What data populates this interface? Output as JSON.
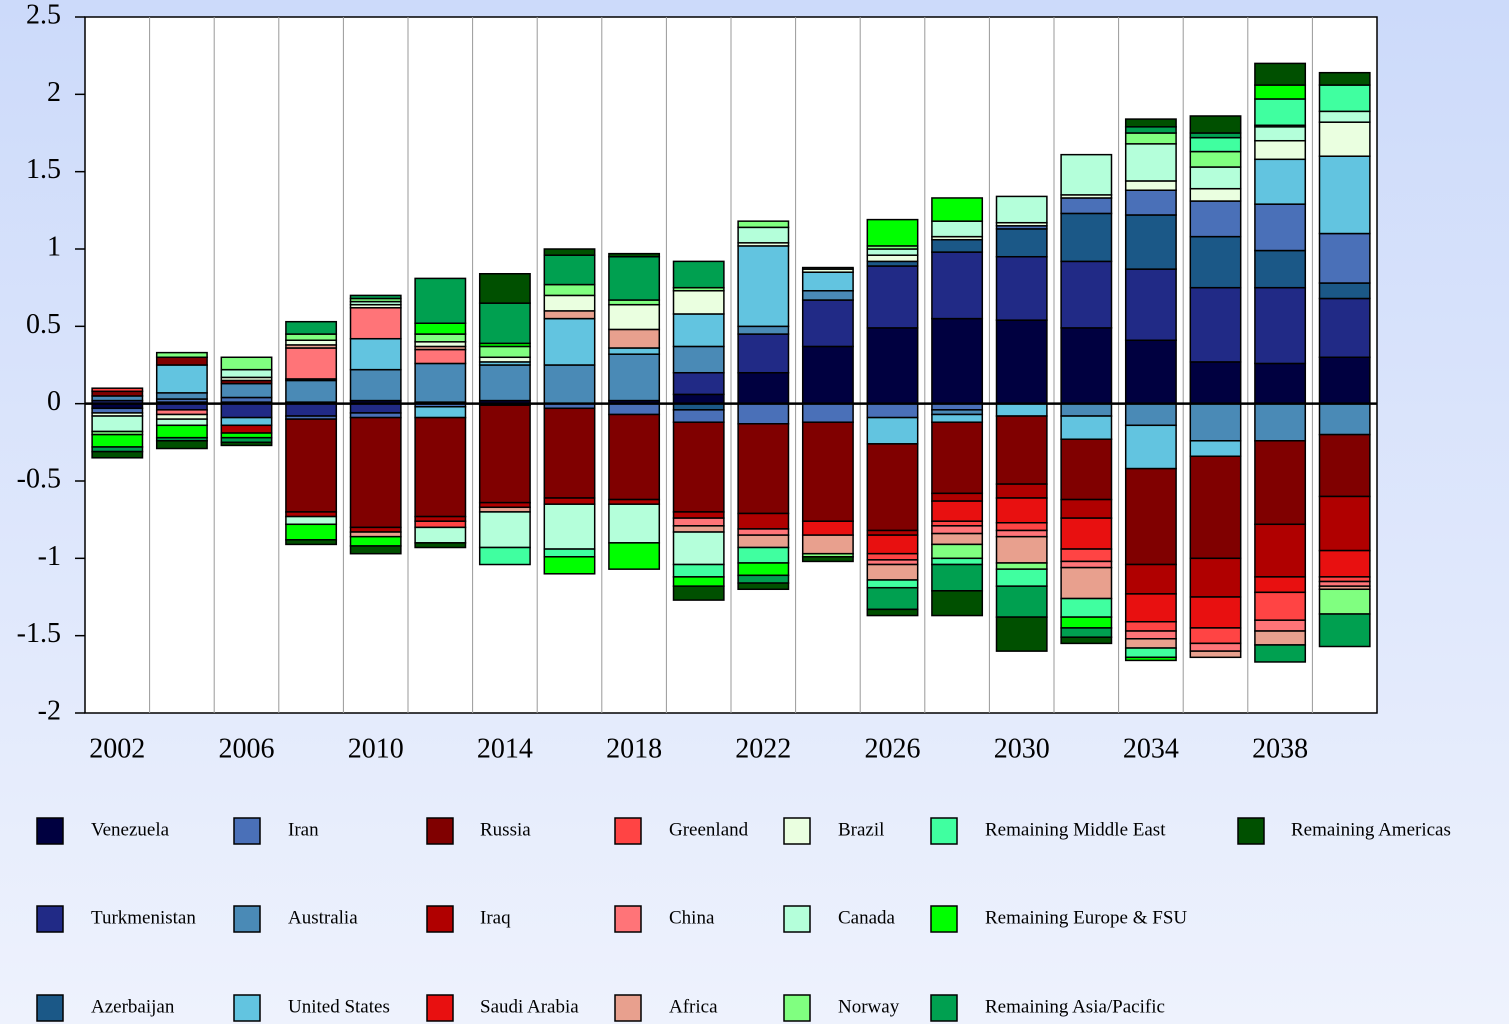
{
  "chart_data": {
    "type": "stacked_bar",
    "categories": [
      "2002",
      null,
      "2006",
      null,
      "2010",
      null,
      "2014",
      null,
      "2018",
      null,
      "2022",
      null,
      "2026",
      null,
      "2030",
      null,
      "2034",
      null,
      "2038",
      null
    ],
    "ylim": [
      -2,
      2.5
    ],
    "yticks": [
      -2,
      -1.5,
      -1,
      -0.5,
      0,
      0.5,
      1,
      1.5,
      2,
      2.5
    ],
    "grid": true,
    "series": [
      {
        "name": "Venezuela",
        "color": "#000040",
        "values": [
          -0.03,
          0.01,
          0.01,
          0.01,
          0.02,
          0.01,
          0.02,
          0,
          0.02,
          0.06,
          0.2,
          0.37,
          0.49,
          0.55,
          0.54,
          0.49,
          0.41,
          0.27,
          0.26,
          0.3
        ]
      },
      {
        "name": "Turkmenistan",
        "color": "#212a86",
        "values": [
          0.02,
          -0.04,
          -0.09,
          -0.08,
          -0.06,
          0,
          -0.01,
          0,
          0,
          0.14,
          0.25,
          0.3,
          0.4,
          0.43,
          0.41,
          0.43,
          0.46,
          0.48,
          0.49,
          0.38
        ]
      },
      {
        "name": "Azerbaijan",
        "color": "#1b5887",
        "values": [
          0,
          0,
          0,
          0,
          0,
          0,
          0,
          0,
          0,
          -0.04,
          0,
          0,
          0.03,
          0.08,
          0.18,
          0.31,
          0.35,
          0.33,
          0.24,
          0.1
        ]
      },
      {
        "name": "Iran",
        "color": "#4a70b8",
        "values": [
          -0.03,
          0.02,
          0.03,
          -0.02,
          -0.03,
          -0.02,
          0,
          -0.03,
          -0.07,
          -0.08,
          -0.13,
          -0.12,
          -0.09,
          -0.04,
          0.02,
          0.1,
          0.16,
          0.23,
          0.3,
          0.32
        ]
      },
      {
        "name": "Australia",
        "color": "#4a8ab6",
        "values": [
          0.03,
          0.04,
          0.09,
          0.14,
          0.2,
          0.25,
          0.23,
          0.25,
          0.3,
          0.17,
          0.05,
          0.06,
          0,
          -0.03,
          0,
          -0.08,
          -0.14,
          -0.24,
          -0.24,
          -0.2
        ]
      },
      {
        "name": "United States",
        "color": "#62c4e0",
        "values": [
          0,
          0.18,
          -0.05,
          0.01,
          0.2,
          -0.07,
          0.02,
          0.3,
          0.04,
          0.21,
          0.52,
          0.12,
          -0.17,
          -0.05,
          -0.08,
          -0.15,
          -0.28,
          -0.1,
          0.29,
          0.5
        ]
      },
      {
        "name": "Russia",
        "color": "#800000",
        "values": [
          0.03,
          0.05,
          0.02,
          -0.6,
          -0.71,
          -0.64,
          -0.63,
          -0.58,
          -0.55,
          -0.58,
          -0.58,
          -0.64,
          -0.56,
          -0.46,
          -0.44,
          -0.39,
          -0.62,
          -0.66,
          -0.54,
          -0.4
        ]
      },
      {
        "name": "Iraq",
        "color": "#b00000",
        "values": [
          0,
          0,
          -0.05,
          -0.03,
          -0.03,
          -0.03,
          -0.03,
          -0.04,
          -0.03,
          -0.04,
          -0.1,
          0,
          -0.03,
          -0.05,
          -0.09,
          -0.12,
          -0.19,
          -0.25,
          -0.34,
          -0.35
        ]
      },
      {
        "name": "Saudi Arabia",
        "color": "#e81010",
        "values": [
          0,
          0,
          0,
          0,
          0,
          0,
          0,
          0,
          0,
          0,
          0,
          -0.09,
          -0.12,
          -0.13,
          -0.16,
          -0.2,
          -0.18,
          -0.2,
          -0.1,
          -0.17
        ]
      },
      {
        "name": "Greenland",
        "color": "#ff4444",
        "values": [
          0.02,
          0,
          0,
          0,
          0,
          -0.04,
          0,
          0,
          0,
          0,
          0,
          0,
          -0.04,
          -0.03,
          -0.05,
          -0.08,
          -0.06,
          -0.1,
          -0.18,
          -0.03
        ]
      },
      {
        "name": "China",
        "color": "#ff7478",
        "values": [
          0,
          -0.03,
          0,
          0.2,
          0.2,
          0.09,
          0,
          0,
          0,
          -0.05,
          -0.04,
          0,
          -0.03,
          -0.05,
          -0.04,
          -0.04,
          -0.05,
          -0.05,
          -0.07,
          -0.03
        ]
      },
      {
        "name": "Africa",
        "color": "#e8a08e",
        "values": [
          0,
          0,
          0,
          0.02,
          -0.03,
          0.02,
          -0.03,
          0.05,
          0.12,
          -0.04,
          -0.08,
          -0.12,
          -0.1,
          -0.07,
          -0.17,
          -0.2,
          -0.06,
          -0.04,
          -0.09,
          -0.02
        ]
      },
      {
        "name": "Brazil",
        "color": "#eaffe0",
        "values": [
          -0.02,
          -0.03,
          0.02,
          0.03,
          0.02,
          0.03,
          0.03,
          0.1,
          0.16,
          0.15,
          0.02,
          0.02,
          0.04,
          0.02,
          0.02,
          0.02,
          0.06,
          0.08,
          0.12,
          0.22
        ]
      },
      {
        "name": "Canada",
        "color": "#b4ffda",
        "values": [
          -0.1,
          -0.04,
          0.05,
          -0.05,
          0.02,
          -0.1,
          -0.23,
          -0.29,
          -0.25,
          -0.21,
          0.1,
          0.01,
          0.04,
          0.1,
          0.17,
          0.26,
          0.24,
          0.14,
          0.09,
          0.07
        ]
      },
      {
        "name": "Norway",
        "color": "#80ff80",
        "values": [
          -0.02,
          0.03,
          0.08,
          0.04,
          0.02,
          0.05,
          0.07,
          0.07,
          0.03,
          0.02,
          0.04,
          -0.02,
          0.02,
          -0.09,
          -0.04,
          0,
          0.07,
          0.1,
          0.01,
          -0.16
        ]
      },
      {
        "name": "Remaining Middle East",
        "color": "#40ffa0",
        "values": [
          0,
          0,
          0,
          0,
          0,
          0,
          -0.11,
          -0.05,
          0,
          -0.08,
          -0.1,
          0,
          -0.05,
          -0.04,
          -0.11,
          -0.12,
          -0.06,
          0.09,
          0.17,
          0.17
        ]
      },
      {
        "name": "Remaining Europe & FSU",
        "color": "#00ff00",
        "values": [
          -0.08,
          -0.08,
          -0.03,
          -0.1,
          -0.06,
          0.07,
          0.02,
          -0.11,
          -0.17,
          -0.06,
          -0.08,
          0,
          0.17,
          0.15,
          0,
          -0.07,
          -0.02,
          0,
          0.09,
          0
        ]
      },
      {
        "name": "Remaining Asia/Pacific",
        "color": "#00a050",
        "values": [
          -0.03,
          -0.02,
          -0.03,
          0.08,
          0.02,
          0.29,
          0.26,
          0.19,
          0.28,
          0.17,
          -0.05,
          0,
          -0.14,
          -0.17,
          -0.2,
          -0.06,
          0.04,
          0.03,
          -0.11,
          -0.21
        ]
      },
      {
        "name": "Remaining Americas",
        "color": "#005000",
        "values": [
          -0.04,
          -0.05,
          -0.02,
          -0.03,
          -0.05,
          -0.03,
          0.19,
          0.04,
          0.02,
          -0.09,
          -0.04,
          -0.03,
          -0.04,
          -0.16,
          -0.22,
          -0.04,
          0.05,
          0.11,
          0.14,
          0.08
        ]
      }
    ]
  }
}
